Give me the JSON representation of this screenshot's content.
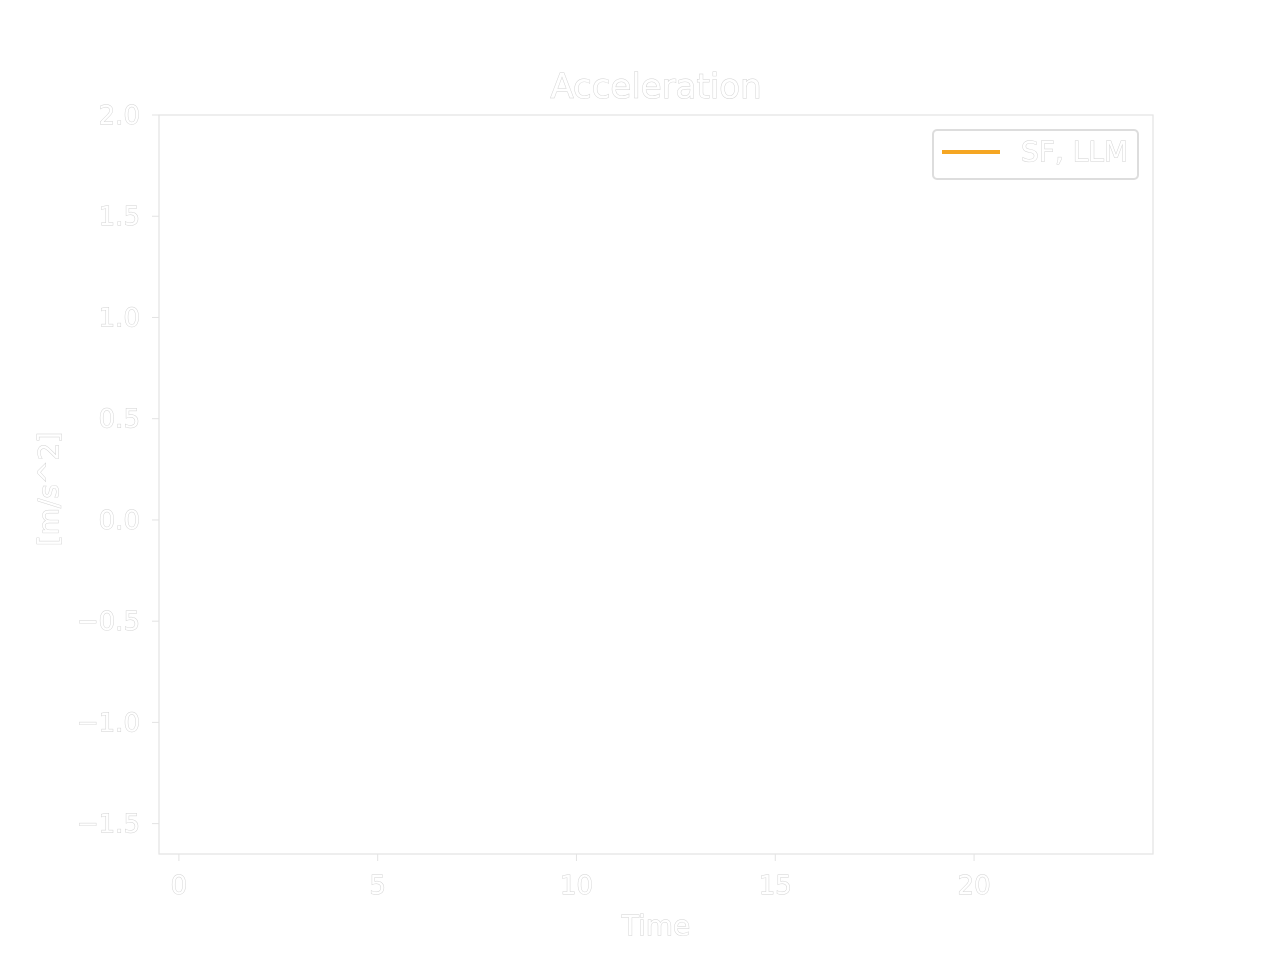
{
  "chart_data": {
    "type": "line",
    "title": "Acceleration",
    "xlabel": "Time",
    "ylabel": "[m/s^2]",
    "xlim": [
      -0.5,
      24.5
    ],
    "ylim": [
      -1.65,
      2.0
    ],
    "x_ticks": [
      0,
      5,
      10,
      15,
      20
    ],
    "x_tick_labels": [
      "0",
      "5",
      "10",
      "15",
      "20"
    ],
    "y_ticks": [
      2.0,
      1.5,
      1.0,
      0.5,
      0.0,
      -0.5,
      -1.0,
      -1.5
    ],
    "y_tick_labels": [
      "2.0",
      "1.5",
      "1.0",
      "0.5",
      "0.0",
      "−0.5",
      "−1.0",
      "−1.5"
    ],
    "grid": false,
    "legend_position": "top-right",
    "series": [
      {
        "name": "SF, LLM",
        "color": "#f5a623",
        "x": [],
        "y": []
      }
    ]
  }
}
